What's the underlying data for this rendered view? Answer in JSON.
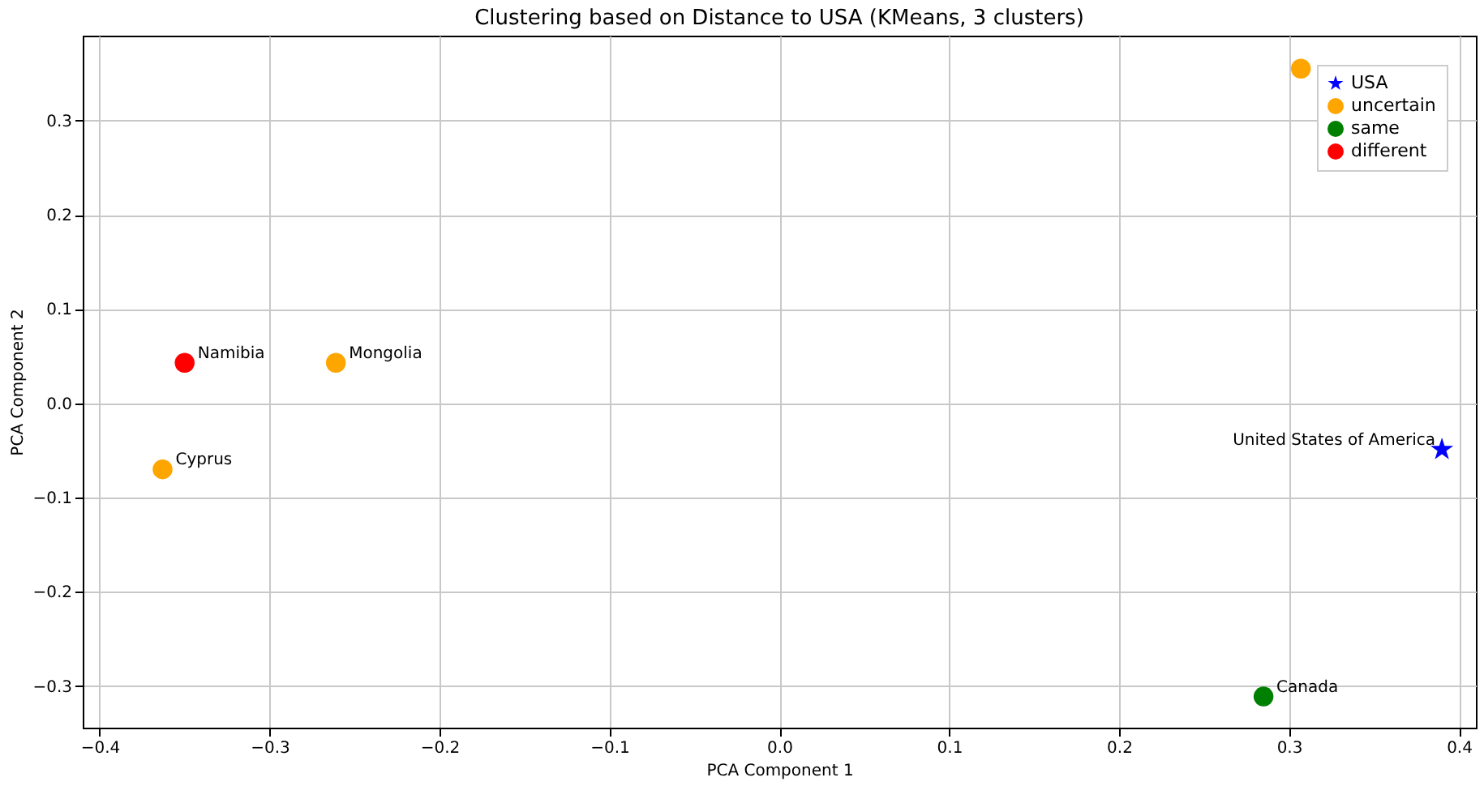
{
  "chart_data": {
    "type": "scatter",
    "title": "Clustering based on Distance to USA (KMeans, 3 clusters)",
    "xlabel": "PCA Component 1",
    "ylabel": "PCA Component 2",
    "series": [
      {
        "name": "USA",
        "color": "#0000ff",
        "marker": "star",
        "x": [
          0.39
        ],
        "values": [
          -0.049
        ]
      },
      {
        "name": "uncertain",
        "color": "#ffa500",
        "marker": "circle",
        "x": [
          -0.261,
          -0.363,
          0.307
        ],
        "values": [
          0.043,
          -0.07,
          0.355
        ]
      },
      {
        "name": "same",
        "color": "#008000",
        "marker": "circle",
        "x": [
          0.285
        ],
        "values": [
          -0.311
        ]
      },
      {
        "name": "different",
        "color": "#ff0000",
        "marker": "circle",
        "x": [
          -0.35
        ],
        "values": [
          0.043
        ]
      }
    ],
    "annotations": [
      {
        "text": "United States of America",
        "x": 0.39,
        "y": -0.049
      },
      {
        "text": "Mongolia",
        "x": -0.261,
        "y": 0.043
      },
      {
        "text": "Cyprus",
        "x": -0.363,
        "y": -0.07
      },
      {
        "text": "Canada",
        "x": 0.285,
        "y": -0.311
      },
      {
        "text": "Namibia",
        "x": -0.35,
        "y": 0.043
      }
    ],
    "xlim": [
      -0.41,
      0.41
    ],
    "ylim": [
      -0.344,
      0.39
    ],
    "xticks": [
      -0.4,
      -0.3,
      -0.2,
      -0.1,
      {
        "value": 0,
        "label": "0.0"
      },
      0.1,
      0.2,
      0.3,
      0.4
    ],
    "yticks": [
      -0.3,
      -0.2,
      -0.1,
      {
        "value": 0,
        "label": "0.0"
      },
      0.1,
      0.2,
      0.3
    ],
    "grid": true,
    "legend": "top right"
  }
}
